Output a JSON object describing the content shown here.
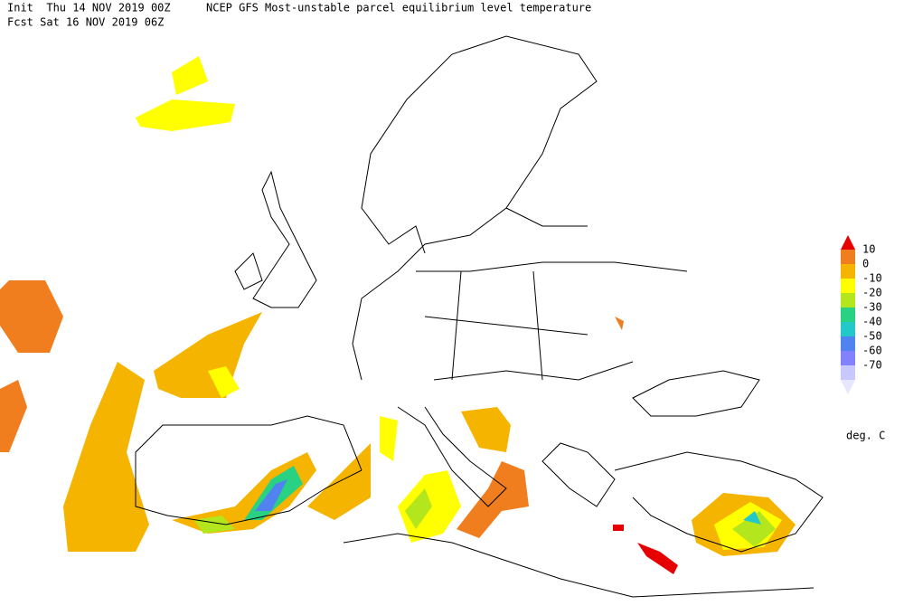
{
  "header": {
    "init": "Init  Thu 14 NOV 2019 00Z",
    "title": "NCEP GFS Most-unstable parcel equilibrium level temperature",
    "forecast": "Fcst Sat 16 NOV 2019 06Z"
  },
  "legend": {
    "colors": [
      "#e60000",
      "#f07d1e",
      "#f5b400",
      "#ffff00",
      "#b4e61e",
      "#28d282",
      "#23c8c8",
      "#5082f0",
      "#8282ff",
      "#c8c8ff",
      "#e6e6ff"
    ],
    "labels": [
      "10",
      "0",
      "-10",
      "-20",
      "-30",
      "-40",
      "-50",
      "-60",
      "-70"
    ],
    "unit": "deg. C"
  }
}
